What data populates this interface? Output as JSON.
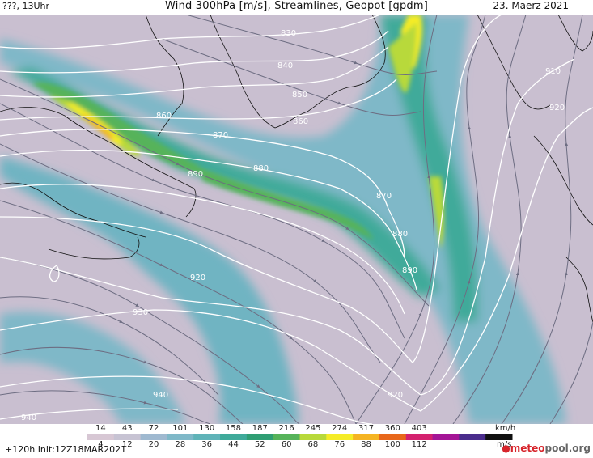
{
  "header": {
    "left": "???, 13Uhr",
    "title": "Wind 300hPa [m/s], Streamlines, Geopot [gpdm]",
    "date": "23. Maerz 2021"
  },
  "contour_labels": [
    "830",
    "840",
    "850",
    "860",
    "860",
    "870",
    "880",
    "890",
    "870",
    "880",
    "890",
    "920",
    "930",
    "940",
    "940",
    "920",
    "910",
    "920"
  ],
  "legend": {
    "kmh_values": [
      "14",
      "43",
      "72",
      "101",
      "130",
      "158",
      "187",
      "216",
      "245",
      "274",
      "317",
      "360",
      "403"
    ],
    "kmh_unit": "km/h",
    "ms_values": [
      "4",
      "12",
      "20",
      "28",
      "36",
      "44",
      "52",
      "60",
      "68",
      "76",
      "88",
      "100",
      "112"
    ],
    "ms_unit": "m/s",
    "colors": [
      "#d7c7d4",
      "#c7c3d3",
      "#9fb9d0",
      "#7fb8c8",
      "#5fb3b8",
      "#3faa9a",
      "#2f9e73",
      "#56b35a",
      "#b8d93a",
      "#f5ec27",
      "#f5b422",
      "#e8671a",
      "#d4216f",
      "#a41596",
      "#4a2c8c",
      "#111111"
    ]
  },
  "footer": {
    "forecast": "+120h",
    "init": "Init:12Z18MAR2021"
  },
  "logo": {
    "meteo": "meteo",
    "pool": "pool",
    "org": ".org"
  }
}
